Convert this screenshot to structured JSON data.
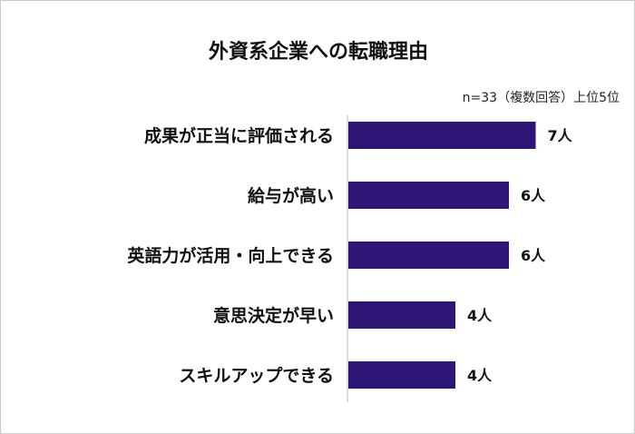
{
  "chart_data": {
    "type": "bar",
    "orientation": "horizontal",
    "title": "外資系企業への転職理由",
    "note": "n=33（複数回答）上位5位",
    "categories": [
      "成果が正当に評価される",
      "給与が高い",
      "英語力が活用・向上できる",
      "意思決定が早い",
      "スキルアップできる"
    ],
    "values": [
      7,
      6,
      6,
      4,
      4
    ],
    "data_labels": [
      "7人",
      "6人",
      "6人",
      "4人",
      "4人"
    ],
    "bar_color": "#2d1675",
    "grid": false,
    "legend": "none"
  }
}
